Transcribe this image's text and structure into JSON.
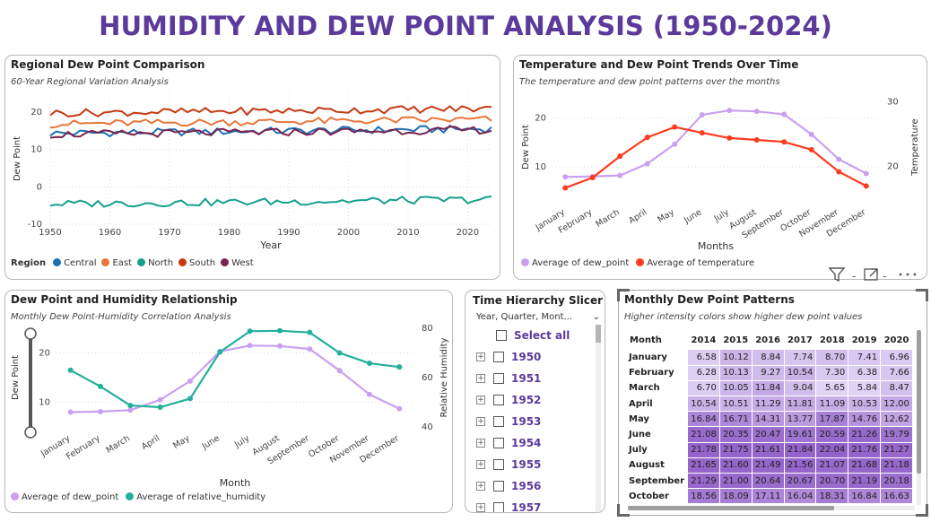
{
  "title": "HUMIDITY AND DEW POINT ANALYSIS (1950-2024)",
  "regional": {
    "title": "Regional Dew Point Comparison",
    "subtitle": "60-Year Regional Variation Analysis",
    "legend_title": "Region",
    "chart_data": {
      "type": "line",
      "xlabel": "Year",
      "ylabel": "Dew Point",
      "xlim": [
        1950,
        2024
      ],
      "ylim": [
        -10,
        25
      ],
      "x_ticks": [
        1950,
        1960,
        1970,
        1980,
        1990,
        2000,
        2010,
        2020
      ],
      "y_ticks": [
        -10,
        0,
        10,
        20
      ],
      "grid": true,
      "legend_position": "bottom",
      "series": [
        {
          "name": "Central",
          "color": "#1f6fb4",
          "base": 14.3
        },
        {
          "name": "East",
          "color": "#e8763a",
          "base": 16.8
        },
        {
          "name": "North",
          "color": "#16a08c",
          "base": -4.6
        },
        {
          "name": "South",
          "color": "#c53a12",
          "base": 19.7
        },
        {
          "name": "West",
          "color": "#7a2350",
          "base": 14.0
        }
      ]
    }
  },
  "trend": {
    "title": "Temperature and Dew Point Trends Over Time",
    "subtitle": "The temperature and dew point patterns over the months",
    "legend": [
      "Average of dew_point",
      "Average of temperature"
    ],
    "chart_data": {
      "type": "line",
      "xlabel": "Months",
      "ylabel": "Dew Point",
      "y2label": "Temperature",
      "categories": [
        "January",
        "February",
        "March",
        "April",
        "May",
        "June",
        "July",
        "August",
        "September",
        "October",
        "November",
        "December"
      ],
      "ylim": [
        3,
        25
      ],
      "y_ticks": [
        10,
        20
      ],
      "y2lim": [
        14.7,
        31.3
      ],
      "y2_ticks": [
        20,
        30
      ],
      "series": [
        {
          "name": "Average of dew_point",
          "axis": "left",
          "color": "#c9a0f0",
          "values": [
            7.9,
            8.0,
            8.2,
            10.6,
            14.6,
            20.6,
            21.5,
            21.3,
            20.7,
            16.6,
            11.5,
            8.6
          ]
        },
        {
          "name": "Average of temperature",
          "axis": "right",
          "color": "#ff3b1f",
          "values": [
            16.7,
            18.3,
            21.6,
            24.5,
            26.1,
            25.2,
            24.4,
            24.1,
            23.8,
            22.6,
            19.2,
            17.0
          ]
        }
      ]
    }
  },
  "relation": {
    "title": "Dew Point and Humidity Relationship",
    "subtitle": "Monthly Dew Point-Humidity Correlation Analysis",
    "legend": [
      "Average of dew_point",
      "Average of relative_humidity"
    ],
    "chart_data": {
      "type": "line",
      "xlabel": "Month",
      "ylabel": "Dew Point",
      "y2label": "Relative Humidity",
      "categories": [
        "January",
        "February",
        "March",
        "April",
        "May",
        "June",
        "July",
        "August",
        "September",
        "October",
        "November",
        "December"
      ],
      "ylim": [
        5,
        25
      ],
      "y_ticks": [
        10,
        20
      ],
      "y2lim": [
        40,
        80
      ],
      "y2_ticks": [
        40,
        60,
        80
      ],
      "series": [
        {
          "name": "Average of dew_point",
          "axis": "left",
          "color": "#c9a0f0",
          "values": [
            8.0,
            8.1,
            8.4,
            10.5,
            14.3,
            20.3,
            21.5,
            21.4,
            20.8,
            16.4,
            11.6,
            8.7
          ]
        },
        {
          "name": "Average of relative_humidity",
          "axis": "right",
          "color": "#22b09a",
          "values": [
            63.0,
            56.4,
            48.7,
            48.0,
            51.5,
            70.4,
            78.8,
            79.0,
            78.3,
            70.0,
            65.8,
            64.3
          ]
        }
      ]
    }
  },
  "slicer": {
    "title": "Time Hierarchy Slicer",
    "dropdown": "Year, Quarter, Mont...",
    "select_all": "Select all",
    "years": [
      "1950",
      "1951",
      "1952",
      "1953",
      "1954",
      "1955",
      "1956",
      "1957"
    ]
  },
  "matrix": {
    "title": "Monthly Dew Point Patterns",
    "subtitle": "Higher intensity colors show higher dew point values",
    "corner": "Month",
    "columns": [
      "2014",
      "2015",
      "2016",
      "2017",
      "2018",
      "2019",
      "2020"
    ],
    "rows": [
      {
        "month": "January",
        "values": [
          "6.58",
          "10.12",
          "8.84",
          "7.74",
          "8.70",
          "7.41",
          "6.96"
        ]
      },
      {
        "month": "February",
        "values": [
          "6.28",
          "10.13",
          "9.27",
          "10.54",
          "7.30",
          "6.38",
          "7.66"
        ]
      },
      {
        "month": "March",
        "values": [
          "6.70",
          "10.05",
          "11.84",
          "9.04",
          "5.65",
          "5.84",
          "8.47"
        ]
      },
      {
        "month": "April",
        "values": [
          "10.54",
          "10.51",
          "11.29",
          "11.81",
          "11.09",
          "10.53",
          "12.00"
        ]
      },
      {
        "month": "May",
        "values": [
          "16.84",
          "16.71",
          "14.31",
          "13.77",
          "17.87",
          "14.76",
          "12.62"
        ]
      },
      {
        "month": "June",
        "values": [
          "21.08",
          "20.35",
          "20.47",
          "19.61",
          "20.59",
          "21.26",
          "19.79"
        ]
      },
      {
        "month": "July",
        "values": [
          "21.78",
          "21.75",
          "21.61",
          "21.84",
          "22.04",
          "21.76",
          "21.27"
        ]
      },
      {
        "month": "August",
        "values": [
          "21.65",
          "21.60",
          "21.49",
          "21.56",
          "21.07",
          "21.68",
          "21.18"
        ]
      },
      {
        "month": "September",
        "values": [
          "21.29",
          "21.00",
          "20.64",
          "20.67",
          "20.70",
          "21.19",
          "20.18"
        ]
      },
      {
        "month": "October",
        "values": [
          "18.56",
          "18.09",
          "17.11",
          "16.04",
          "18.31",
          "16.84",
          "16.63"
        ]
      }
    ]
  }
}
